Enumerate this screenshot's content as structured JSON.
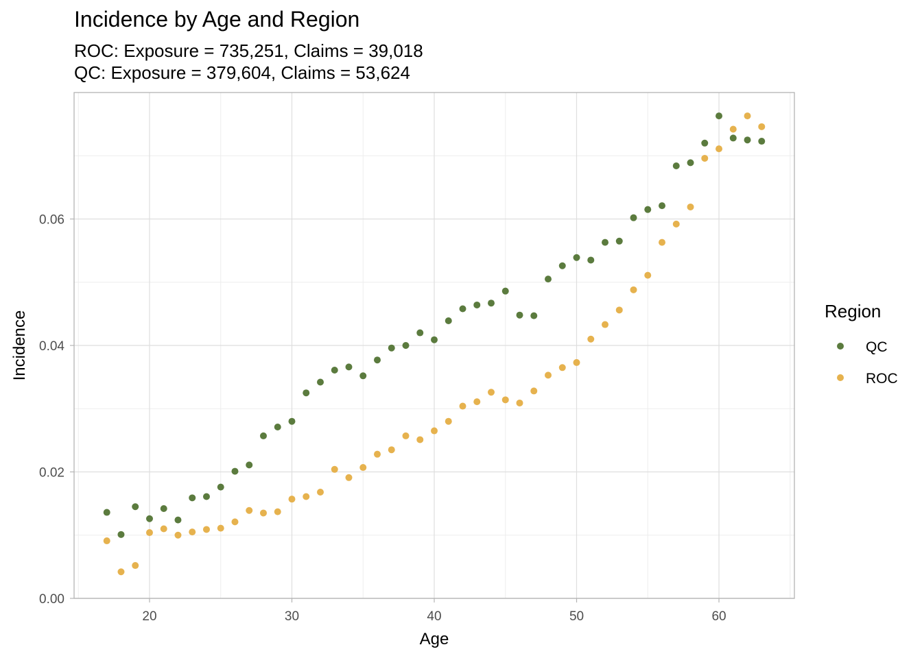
{
  "chart_data": {
    "type": "scatter",
    "title": "Incidence by Age and Region",
    "subtitle_lines": [
      "ROC: Exposure = 735,251, Claims = 39,018",
      "QC: Exposure = 379,604, Claims = 53,624"
    ],
    "xlabel": "Age",
    "ylabel": "Incidence",
    "xlim": [
      14.7,
      65.3
    ],
    "ylim": [
      0.0,
      0.08
    ],
    "xticks": [
      20,
      30,
      40,
      50,
      60
    ],
    "xtick_labels": [
      "20",
      "30",
      "40",
      "50",
      "60"
    ],
    "yticks": [
      0.0,
      0.02,
      0.04,
      0.06
    ],
    "ytick_labels": [
      "0.00",
      "0.02",
      "0.04",
      "0.06"
    ],
    "grid": true,
    "legend": {
      "title": "Region",
      "position": "right"
    },
    "series": [
      {
        "name": "QC",
        "color": "#5b7b3e",
        "x": [
          17,
          18,
          19,
          20,
          21,
          22,
          23,
          24,
          25,
          26,
          27,
          28,
          29,
          30,
          31,
          32,
          33,
          34,
          35,
          36,
          37,
          38,
          39,
          40,
          41,
          42,
          43,
          44,
          45,
          46,
          47,
          48,
          49,
          50,
          51,
          52,
          53,
          54,
          55,
          56,
          57,
          58,
          59,
          60,
          61,
          62,
          63
        ],
        "y": [
          0.0136,
          0.0101,
          0.0145,
          0.0126,
          0.0142,
          0.0124,
          0.0159,
          0.0161,
          0.0176,
          0.0201,
          0.0211,
          0.0257,
          0.0271,
          0.028,
          0.0325,
          0.0342,
          0.0361,
          0.0366,
          0.0352,
          0.0377,
          0.0396,
          0.04,
          0.042,
          0.0409,
          0.0439,
          0.0458,
          0.0464,
          0.0467,
          0.0486,
          0.0448,
          0.0447,
          0.0505,
          0.0526,
          0.0539,
          0.0535,
          0.0563,
          0.0565,
          0.0602,
          0.0615,
          0.0621,
          0.0684,
          0.0689,
          0.072,
          0.0763,
          0.0728,
          0.0725,
          0.0723
        ]
      },
      {
        "name": "ROC",
        "color": "#e6b24e",
        "x": [
          17,
          18,
          19,
          20,
          21,
          22,
          23,
          24,
          25,
          26,
          27,
          28,
          29,
          30,
          31,
          32,
          33,
          34,
          35,
          36,
          37,
          38,
          39,
          40,
          41,
          42,
          43,
          44,
          45,
          46,
          47,
          48,
          49,
          50,
          51,
          52,
          53,
          54,
          55,
          56,
          57,
          58,
          59,
          60,
          61,
          62,
          63
        ],
        "y": [
          0.0091,
          0.0042,
          0.0052,
          0.0104,
          0.011,
          0.01,
          0.0105,
          0.0109,
          0.0111,
          0.0121,
          0.0139,
          0.0135,
          0.0137,
          0.0157,
          0.0161,
          0.0168,
          0.0204,
          0.0191,
          0.0207,
          0.0228,
          0.0235,
          0.0257,
          0.0251,
          0.0265,
          0.028,
          0.0304,
          0.0311,
          0.0326,
          0.0314,
          0.0309,
          0.0328,
          0.0353,
          0.0365,
          0.0373,
          0.041,
          0.0433,
          0.0456,
          0.0488,
          0.0511,
          0.0563,
          0.0592,
          0.0619,
          0.0696,
          0.0711,
          0.0742,
          0.0763,
          0.0746
        ]
      }
    ]
  }
}
